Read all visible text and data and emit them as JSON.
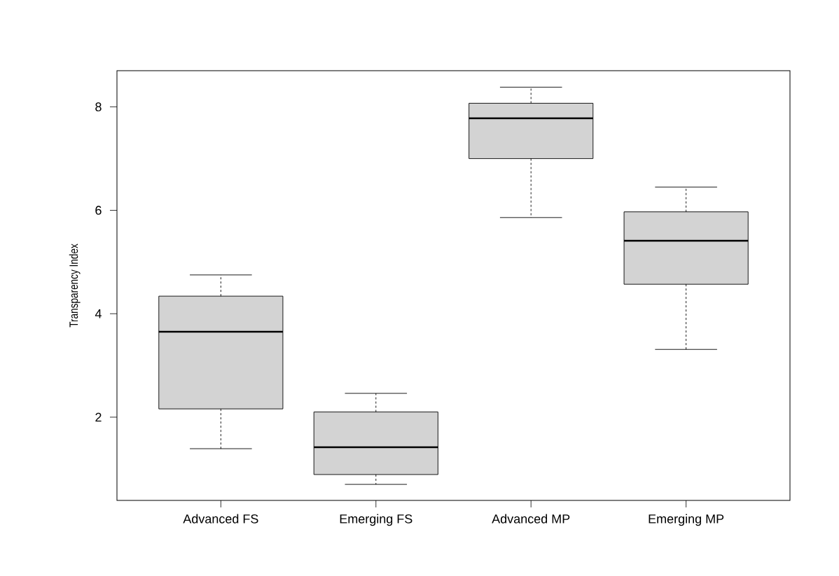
{
  "chart_data": {
    "type": "box",
    "ylabel": "Transparency Index",
    "categories": [
      "Advanced FS",
      "Emerging FS",
      "Advanced MP",
      "Emerging MP"
    ],
    "boxes": [
      {
        "low": 1.39,
        "q1": 2.16,
        "median": 3.65,
        "q3": 4.34,
        "high": 4.75
      },
      {
        "low": 0.7,
        "q1": 0.89,
        "median": 1.42,
        "q3": 2.1,
        "high": 2.46
      },
      {
        "low": 5.86,
        "q1": 7.0,
        "median": 7.78,
        "q3": 8.07,
        "high": 8.38
      },
      {
        "low": 3.31,
        "q1": 4.57,
        "median": 5.41,
        "q3": 5.97,
        "high": 6.45
      }
    ],
    "color": "#d3d3d3",
    "ylim": [
      0.39,
      8.7
    ],
    "yticks": [
      2,
      4,
      6,
      8
    ],
    "grid": false
  }
}
